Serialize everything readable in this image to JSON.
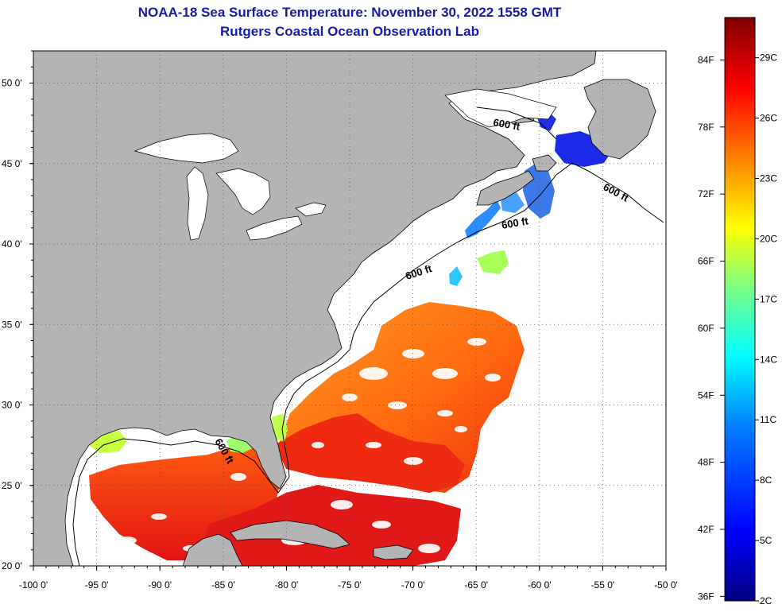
{
  "header": {
    "title": "NOAA-18 Sea Surface Temperature:  November 30, 2022 1558 GMT",
    "subtitle": "Rutgers Coastal Ocean Observation Lab"
  },
  "map": {
    "lon_range": [
      -100,
      -50
    ],
    "lat_range": [
      20,
      52
    ],
    "x_ticks": [
      "-100 0'",
      "-95 0'",
      "-90 0'",
      "-85 0'",
      "-80 0'",
      "-75 0'",
      "-70 0'",
      "-65 0'",
      "-60 0'",
      "-55 0'",
      "-50 0'"
    ],
    "y_ticks": [
      "50 0'",
      "45 0'",
      "40 0'",
      "35 0'",
      "30 0'",
      "25 0'",
      "20 0'"
    ],
    "contour_labels": [
      "600 ft",
      "600 ft",
      "600 ft",
      "600 ft",
      "600 ft"
    ],
    "land_color": "#b4b4b4",
    "no_data_color": "#ffffff"
  },
  "colorbar": {
    "fahrenheit_labels": [
      "84F",
      "78F",
      "72F",
      "66F",
      "60F",
      "54F",
      "48F",
      "42F",
      "36F"
    ],
    "celsius_labels": [
      "29C",
      "26C",
      "23C",
      "20C",
      "17C",
      "14C",
      "11C",
      "8C",
      "5C",
      "2C"
    ],
    "range_c": [
      2,
      31
    ],
    "colors": [
      "#00007f",
      "#0000ff",
      "#007fff",
      "#00ffff",
      "#7fff7f",
      "#ffff00",
      "#ff7f00",
      "#ff0000",
      "#7f0000"
    ]
  }
}
